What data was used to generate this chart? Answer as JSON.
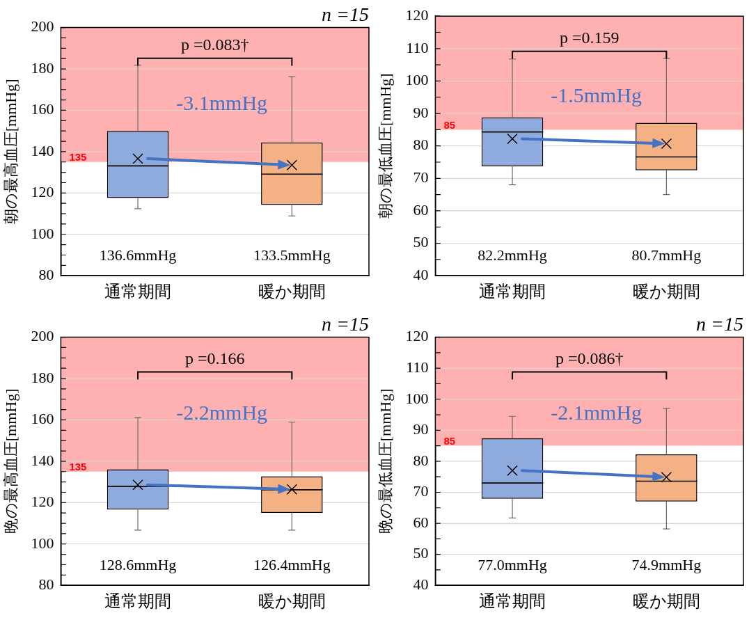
{
  "chart_data": [
    {
      "type": "box",
      "subtitle": "n =15",
      "ylabel": "朝の最高血圧[mmHg]",
      "categories": [
        "通常期間",
        "暖か期間"
      ],
      "colors": [
        "#8faadc",
        "#f4b183"
      ],
      "boxes": [
        {
          "low": 112.4,
          "q1": 117.6,
          "median": 133.1,
          "q3": 150,
          "high": 181.8,
          "mean": 136.6
        },
        {
          "low": 108.9,
          "q1": 114.2,
          "median": 129.1,
          "q3": 144.4,
          "high": 176.3,
          "mean": 133.5
        }
      ],
      "ylim": [
        80,
        200
      ],
      "yticks": [
        80,
        {
          "value": 85,
          "label": null
        },
        {
          "value": 90,
          "label": null
        },
        {
          "value": 95,
          "label": null
        },
        100,
        {
          "value": 105,
          "label": null
        },
        {
          "value": 110,
          "label": null
        },
        {
          "value": 115,
          "label": null
        },
        120,
        {
          "value": 125,
          "label": null
        },
        {
          "value": 130,
          "label": null
        },
        {
          "value": 135,
          "label": null
        },
        140,
        {
          "value": 145,
          "label": null
        },
        {
          "value": 150,
          "label": null
        },
        {
          "value": 155,
          "label": null
        },
        160,
        {
          "value": 165,
          "label": null
        },
        {
          "value": 170,
          "label": null
        },
        {
          "value": 175,
          "label": null
        },
        180,
        {
          "value": 185,
          "label": null
        },
        {
          "value": 190,
          "label": null
        },
        {
          "value": 195,
          "label": null
        },
        200
      ],
      "grid": "y",
      "marker": "cross",
      "bands": [
        {
          "axis": "y",
          "from": 135,
          "to": 200,
          "label": "135",
          "color": "#ffb1b1"
        }
      ],
      "annotations": [
        "p =0.083†",
        "-3.1mmHg",
        "136.6mmHg",
        "133.5mmHg"
      ]
    },
    {
      "type": "box",
      "ylabel": "朝の最低血圧[mmHg]",
      "categories": [
        "通常期間",
        "暖か期間"
      ],
      "colors": [
        "#8faadc",
        "#f4b183"
      ],
      "boxes": [
        {
          "low": 68,
          "q1": 73.7,
          "median": 84.3,
          "q3": 88.8,
          "high": 106.8,
          "mean": 82.2
        },
        {
          "low": 65,
          "q1": 72.5,
          "median": 76.6,
          "q3": 87.1,
          "high": 107,
          "mean": 80.7
        }
      ],
      "ylim": [
        40,
        120
      ],
      "yticks": [
        40,
        {
          "value": 45,
          "label": null
        },
        50,
        {
          "value": 55,
          "label": null
        },
        60,
        {
          "value": 65,
          "label": null
        },
        70,
        {
          "value": 75,
          "label": null
        },
        80,
        {
          "value": 85,
          "label": null
        },
        90,
        {
          "value": 95,
          "label": null
        },
        100,
        {
          "value": 105,
          "label": null
        },
        110,
        {
          "value": 115,
          "label": null
        },
        120
      ],
      "grid": "y",
      "marker": "cross",
      "bands": [
        {
          "axis": "y",
          "from": 85,
          "to": 120,
          "label": "85",
          "color": "#ffb1b1"
        }
      ],
      "annotations": [
        "p =0.159",
        "-1.5mmHg",
        "82.2mmHg",
        "80.7mmHg"
      ]
    },
    {
      "type": "box",
      "subtitle": "n =15",
      "ylabel": "晩の最高血圧[mmHg]",
      "categories": [
        "通常期間",
        "暖か期間"
      ],
      "colors": [
        "#8faadc",
        "#f4b183"
      ],
      "boxes": [
        {
          "low": 106.7,
          "q1": 116.7,
          "median": 127.9,
          "q3": 136.1,
          "high": 161.2,
          "mean": 128.6
        },
        {
          "low": 106.7,
          "q1": 115.1,
          "median": 126.2,
          "q3": 132.7,
          "high": 158.9,
          "mean": 126.4
        }
      ],
      "ylim": [
        80,
        200
      ],
      "yticks": [
        80,
        {
          "value": 85,
          "label": null
        },
        {
          "value": 90,
          "label": null
        },
        {
          "value": 95,
          "label": null
        },
        100,
        {
          "value": 105,
          "label": null
        },
        {
          "value": 110,
          "label": null
        },
        {
          "value": 115,
          "label": null
        },
        120,
        {
          "value": 125,
          "label": null
        },
        {
          "value": 130,
          "label": null
        },
        {
          "value": 135,
          "label": null
        },
        140,
        {
          "value": 145,
          "label": null
        },
        {
          "value": 150,
          "label": null
        },
        {
          "value": 155,
          "label": null
        },
        160,
        {
          "value": 165,
          "label": null
        },
        {
          "value": 170,
          "label": null
        },
        {
          "value": 175,
          "label": null
        },
        180,
        {
          "value": 185,
          "label": null
        },
        {
          "value": 190,
          "label": null
        },
        {
          "value": 195,
          "label": null
        },
        200
      ],
      "grid": "y",
      "marker": "cross",
      "bands": [
        {
          "axis": "y",
          "from": 135,
          "to": 200,
          "label": "135",
          "color": "#ffb1b1"
        }
      ],
      "annotations": [
        "p =0.166",
        "-2.2mmHg",
        "128.6mmHg",
        "126.4mmHg"
      ]
    },
    {
      "type": "box",
      "subtitle": "n =15",
      "ylabel": "晩の最低血圧[mmHg]",
      "categories": [
        "通常期間",
        "暖か期間"
      ],
      "colors": [
        "#8faadc",
        "#f4b183"
      ],
      "boxes": [
        {
          "low": 61.7,
          "q1": 67.9,
          "median": 73,
          "q3": 87.4,
          "high": 94.5,
          "mean": 77
        },
        {
          "low": 58.2,
          "q1": 67,
          "median": 73.6,
          "q3": 82.2,
          "high": 97.1,
          "mean": 74.9
        }
      ],
      "ylim": [
        40,
        120
      ],
      "yticks": [
        40,
        {
          "value": 45,
          "label": null
        },
        50,
        {
          "value": 55,
          "label": null
        },
        60,
        {
          "value": 65,
          "label": null
        },
        70,
        {
          "value": 75,
          "label": null
        },
        80,
        {
          "value": 85,
          "label": null
        },
        90,
        {
          "value": 95,
          "label": null
        },
        100,
        {
          "value": 105,
          "label": null
        },
        110,
        {
          "value": 115,
          "label": null
        },
        120
      ],
      "grid": "y",
      "marker": "cross",
      "bands": [
        {
          "axis": "y",
          "from": 85,
          "to": 120,
          "label": "85",
          "color": "#ffb1b1"
        }
      ],
      "annotations": [
        "p =0.086†",
        "-2.1mmHg",
        "77.0mmHg",
        "74.9mmHg"
      ]
    }
  ]
}
